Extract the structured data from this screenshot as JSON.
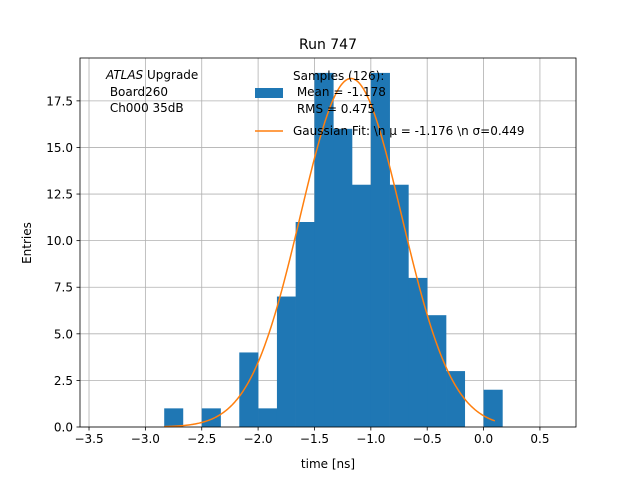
{
  "chart_data": {
    "type": "bar",
    "title": "Run 747",
    "xlabel": "time [ns]",
    "ylabel": "Entries",
    "xlim": [
      -3.58,
      0.82
    ],
    "ylim": [
      0,
      19.8
    ],
    "grid": true,
    "xticks": [
      -3.5,
      -3.0,
      -2.5,
      -2.0,
      -1.5,
      -1.0,
      -0.5,
      0.0,
      0.5
    ],
    "xtick_labels": [
      "−3.5",
      "−3.0",
      "−2.5",
      "−2.0",
      "−1.5",
      "−1.0",
      "−0.5",
      "0.0",
      "0.5"
    ],
    "yticks": [
      0.0,
      2.5,
      5.0,
      7.5,
      10.0,
      12.5,
      15.0,
      17.5
    ],
    "ytick_labels": [
      "0.0",
      "2.5",
      "5.0",
      "7.5",
      "10.0",
      "12.5",
      "15.0",
      "17.5"
    ],
    "annotation": {
      "line1_italic": "ATLAS",
      "line1_rest": " Upgrade",
      "line2": " Board260",
      "line3": " Ch000 35dB"
    },
    "histogram": {
      "name": "Samples (126):\n Mean = -1.178\n RMS = 0.475",
      "color": "#1f77b4",
      "bin_edges": [
        -2.833,
        -2.667,
        -2.5,
        -2.333,
        -2.167,
        -2.0,
        -1.833,
        -1.667,
        -1.5,
        -1.333,
        -1.167,
        -1.0,
        -0.833,
        -0.667,
        -0.5,
        -0.333,
        -0.167,
        0.0,
        0.167
      ],
      "counts": [
        1,
        0,
        1,
        0,
        4,
        1,
        7,
        11,
        19,
        16,
        13,
        19,
        13,
        8,
        6,
        3,
        0,
        2
      ]
    },
    "fit": {
      "name": "Gaussian Fit: \\n $\\mu$ = -1.176 \\n $\\sigma$=0.449",
      "color": "#ff7f0e",
      "mu": -1.176,
      "sigma": 0.449,
      "amplitude": 18.7,
      "x_range": [
        -2.833,
        0.1
      ]
    },
    "legend": {
      "placement": "top-center",
      "entries": [
        {
          "label_lines": [
            "Samples (126):",
            " Mean = -1.178",
            " RMS = 0.475"
          ]
        },
        {
          "label": "Gaussian Fit: \\n μ = -1.176 \\n σ=0.449"
        }
      ]
    }
  }
}
